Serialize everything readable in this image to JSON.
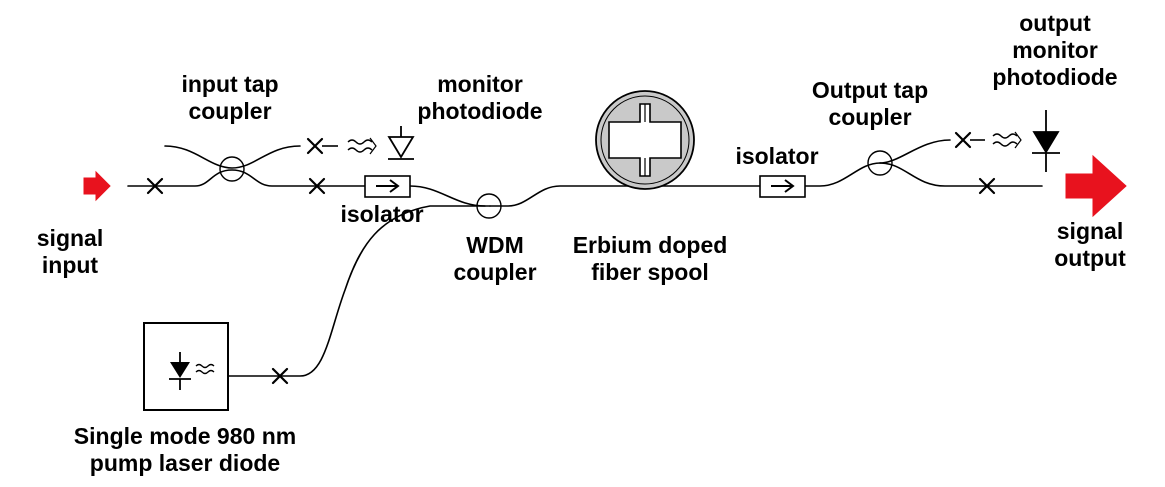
{
  "labels": {
    "signal_input": [
      "signal",
      "input"
    ],
    "input_tap_coupler": [
      "input tap",
      "coupler"
    ],
    "monitor_photodiode": [
      "monitor",
      "photodiode"
    ],
    "isolator_1": "isolator",
    "wdm_coupler": [
      "WDM",
      "coupler"
    ],
    "erbium_spool": [
      "Erbium doped",
      "fiber spool"
    ],
    "isolator_2": "isolator",
    "output_tap_coupler": [
      "Output tap",
      "coupler"
    ],
    "output_monitor_photodiode": [
      "output",
      "monitor",
      "photodiode"
    ],
    "signal_output": [
      "signal",
      "output"
    ],
    "pump_laser": [
      "Single mode 980 nm",
      "pump laser diode"
    ]
  },
  "colors": {
    "arrow": "#e8121e",
    "line": "#000000",
    "spool_fill": "#c9c9c9"
  }
}
